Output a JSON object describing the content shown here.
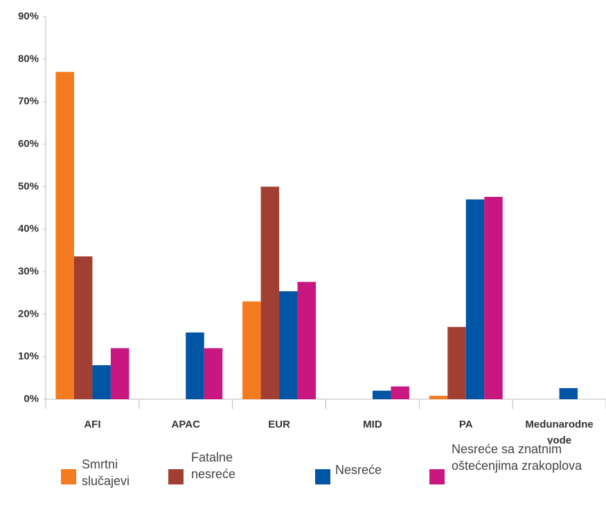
{
  "chart_data": {
    "type": "bar",
    "categories": [
      "AFI",
      "APAC",
      "EUR",
      "MID",
      "PA",
      "Medunarodne vode"
    ],
    "series": [
      {
        "name": "Smrtni slučajevi",
        "color": "#f47b20",
        "values": [
          77,
          0,
          23,
          0,
          0.8,
          0
        ]
      },
      {
        "name": "Fatalne nesreće",
        "color": "#a23f33",
        "values": [
          33.6,
          0,
          50,
          0,
          17,
          0
        ]
      },
      {
        "name": "Nesreće",
        "color": "#0055a4",
        "values": [
          8,
          15.7,
          25.4,
          2,
          47,
          2.6
        ]
      },
      {
        "name": "Nesreće sa znatnim oštećenjima zrakoplova",
        "color": "#c8177f",
        "values": [
          12,
          12,
          27.6,
          3,
          47.6,
          0
        ]
      }
    ],
    "ylim": [
      0,
      90
    ],
    "yticks": [
      {
        "value": 0,
        "label": "0%"
      },
      {
        "value": 10,
        "label": "10%"
      },
      {
        "value": 20,
        "label": "20%"
      },
      {
        "value": 30,
        "label": "30%"
      },
      {
        "value": 40,
        "label": "40%"
      },
      {
        "value": 50,
        "label": "50%"
      },
      {
        "value": 60,
        "label": "60%"
      },
      {
        "value": 70,
        "label": "70%"
      },
      {
        "value": 80,
        "label": "80%"
      },
      {
        "value": 90,
        "label": "90%"
      }
    ],
    "legend": "bottom"
  }
}
